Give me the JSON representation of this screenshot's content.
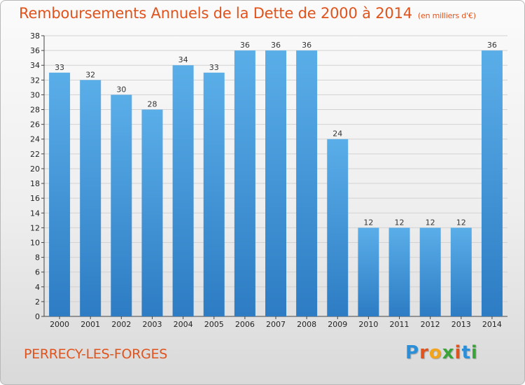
{
  "chart_data": {
    "type": "bar",
    "title": "Remboursements Annuels de la Dette de 2000 à 2014",
    "unit": "(en milliers d'€)",
    "categories": [
      "2000",
      "2001",
      "2002",
      "2003",
      "2004",
      "2005",
      "2006",
      "2007",
      "2008",
      "2009",
      "2010",
      "2011",
      "2012",
      "2013",
      "2014"
    ],
    "values": [
      33,
      32,
      30,
      28,
      34,
      33,
      36,
      36,
      36,
      24,
      12,
      12,
      12,
      12,
      36
    ],
    "ylim": [
      0,
      38
    ],
    "yticks": [
      0,
      2,
      4,
      6,
      8,
      10,
      12,
      14,
      16,
      18,
      20,
      22,
      24,
      26,
      28,
      30,
      32,
      34,
      36,
      38
    ],
    "grid": true,
    "xlabel": "",
    "ylabel": ""
  },
  "colors": {
    "title": "#e0531c",
    "bar_top": "#5aaee8",
    "bar_bottom": "#2d7cc4",
    "grid": "#d2d2d2"
  },
  "footer": {
    "commune": "PERRECY-LES-FORGES",
    "logo_letters": [
      {
        "char": "P",
        "color": "#2a8fd8"
      },
      {
        "char": "r",
        "color": "#e0531c"
      },
      {
        "char": "o",
        "color": "#f2a51a"
      },
      {
        "char": "x",
        "color": "#3aa33a"
      },
      {
        "char": "i",
        "color": "#e0531c"
      },
      {
        "char": "t",
        "color": "#2a8fd8"
      },
      {
        "char": "i",
        "color": "#3aa33a"
      }
    ]
  }
}
